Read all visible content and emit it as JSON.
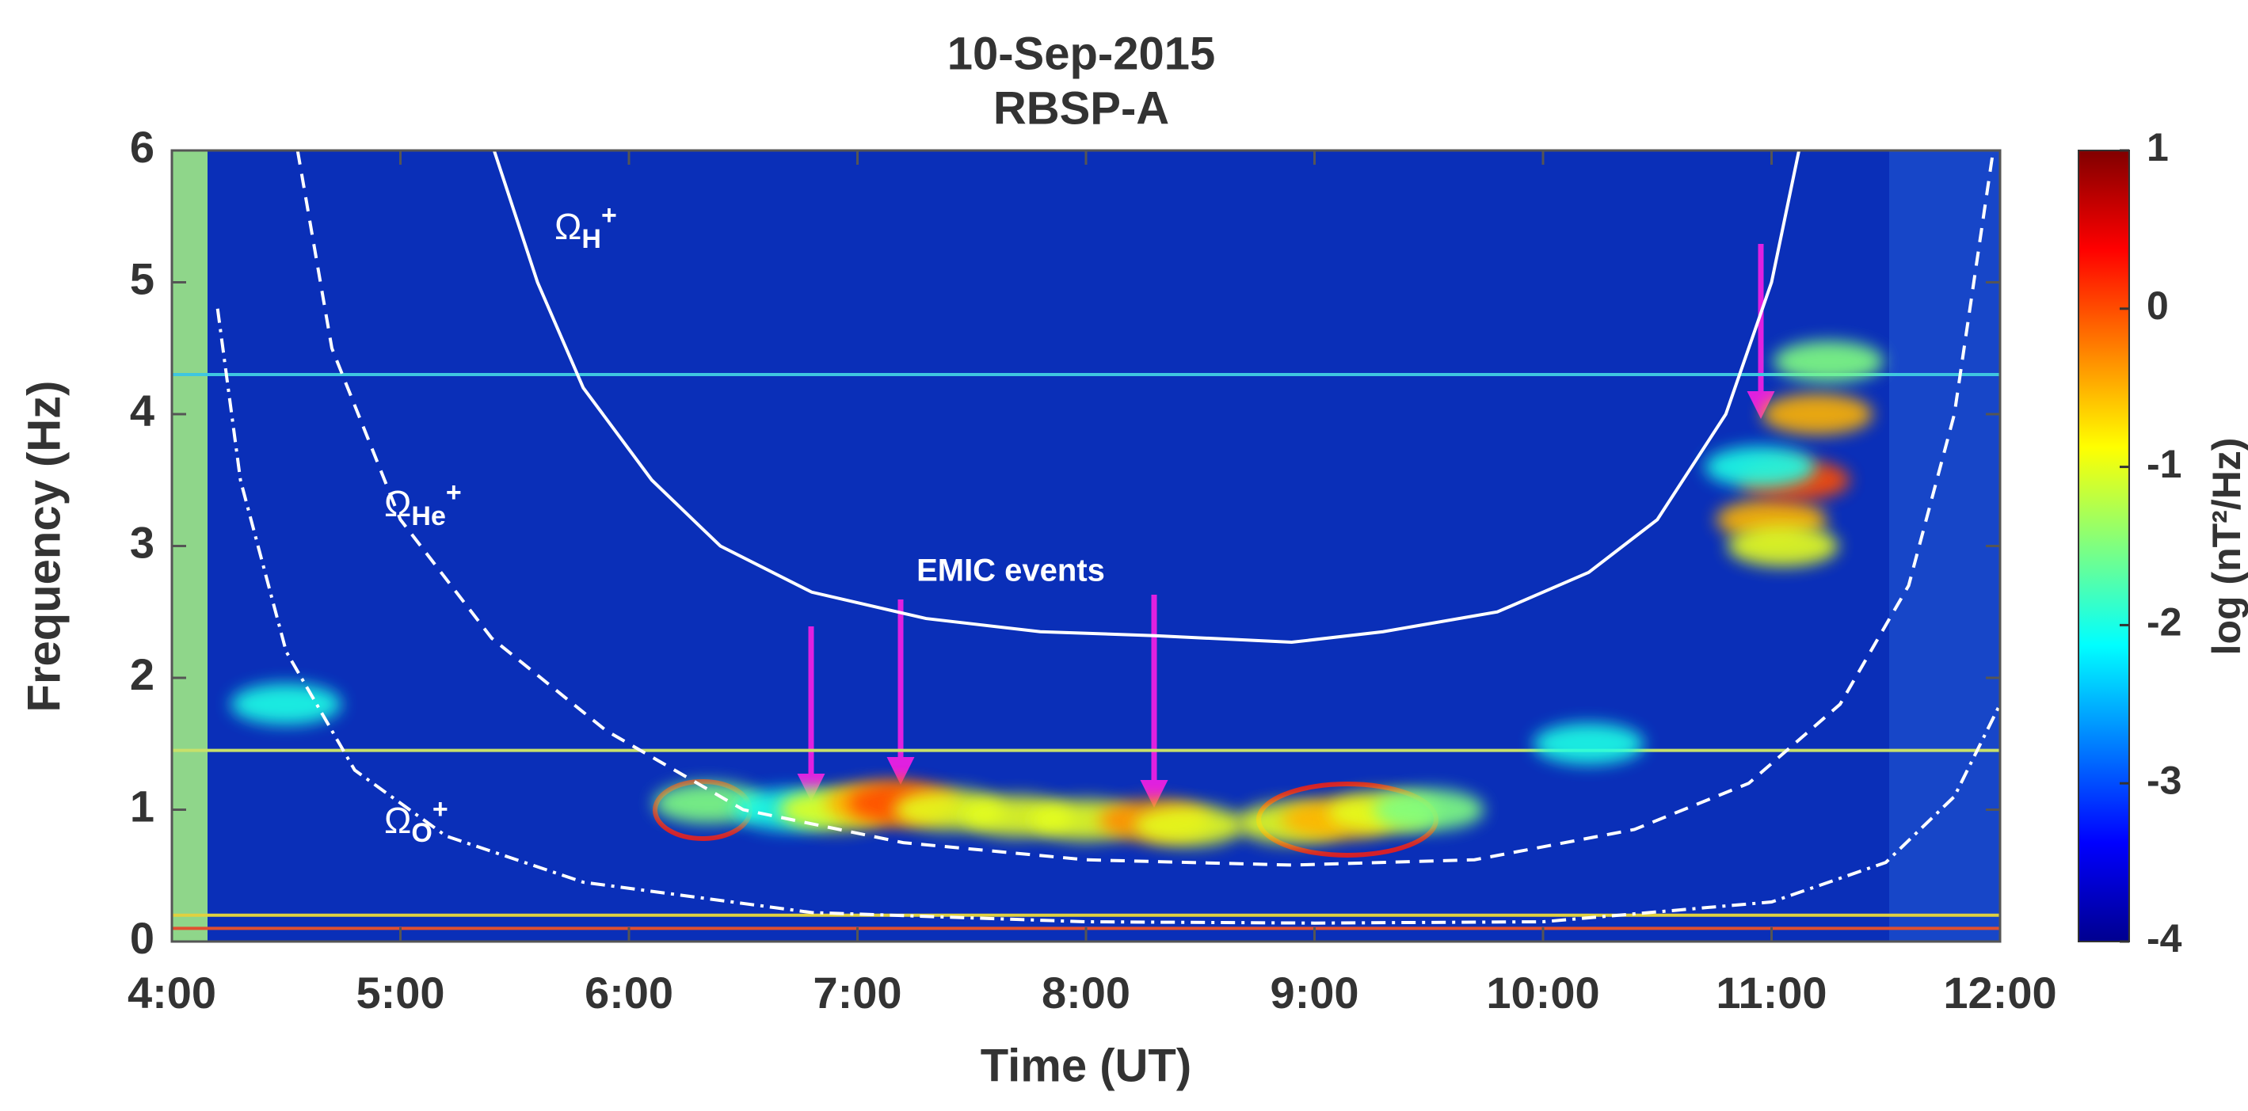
{
  "chart_data": {
    "type": "spectrogram",
    "title": [
      "10-Sep-2015",
      "RBSP-A"
    ],
    "xlabel": "Time (UT)",
    "ylabel": "Frequency (Hz)",
    "colorbar_label": "log (nT²/Hz)",
    "xlim": [
      4,
      12
    ],
    "xticks": [
      {
        "value": 4,
        "label": "4:00"
      },
      {
        "value": 5,
        "label": "5:00"
      },
      {
        "value": 6,
        "label": "6:00"
      },
      {
        "value": 7,
        "label": "7:00"
      },
      {
        "value": 8,
        "label": "8:00"
      },
      {
        "value": 9,
        "label": "9:00"
      },
      {
        "value": 10,
        "label": "10:00"
      },
      {
        "value": 11,
        "label": "11:00"
      },
      {
        "value": 12,
        "label": "12:00"
      }
    ],
    "ylim": [
      0,
      6
    ],
    "yticks": [
      0,
      1,
      2,
      3,
      4,
      5,
      6
    ],
    "clim": [
      -4,
      1
    ],
    "cticks": [
      1,
      0,
      -1,
      -2,
      -3,
      -4
    ],
    "curves": [
      {
        "symbol": "Ω",
        "sub": "H",
        "sup": "+",
        "style": "solid",
        "x": [
          5.41,
          5.6,
          5.8,
          6.1,
          6.4,
          6.8,
          7.3,
          7.8,
          8.3,
          8.9,
          9.3,
          9.8,
          10.2,
          10.5,
          10.8,
          11.0,
          11.12
        ],
        "values": [
          6,
          5,
          4.2,
          3.5,
          3.0,
          2.65,
          2.45,
          2.35,
          2.32,
          2.27,
          2.35,
          2.5,
          2.8,
          3.2,
          4.0,
          5.0,
          6
        ]
      },
      {
        "symbol": "Ω",
        "sub": "He",
        "sup": "+",
        "style": "dashed",
        "x": [
          4.55,
          4.7,
          5.0,
          5.4,
          5.9,
          6.5,
          7.2,
          8.0,
          8.9,
          9.7,
          10.4,
          10.9,
          11.3,
          11.6,
          11.8,
          11.97
        ],
        "values": [
          6,
          4.5,
          3.2,
          2.3,
          1.6,
          1.0,
          0.75,
          0.62,
          0.58,
          0.62,
          0.85,
          1.2,
          1.8,
          2.7,
          4.0,
          6
        ]
      },
      {
        "symbol": "Ω",
        "sub": "O",
        "sup": "+",
        "style": "dashdot",
        "x": [
          4.2,
          4.3,
          4.5,
          4.8,
          5.2,
          5.8,
          6.8,
          8.0,
          9.0,
          10.0,
          11.0,
          11.5,
          11.8,
          12
        ],
        "values": [
          4.8,
          3.5,
          2.2,
          1.3,
          0.8,
          0.45,
          0.22,
          0.15,
          0.14,
          0.15,
          0.3,
          0.6,
          1.1,
          1.8
        ]
      }
    ],
    "lines": [
      {
        "y": 4.3,
        "color": "#3fc6e0"
      },
      {
        "y": 1.45,
        "color": "#c8e06a"
      },
      {
        "y": 0.2,
        "color": "#e0d040"
      },
      {
        "y": 0.1,
        "color": "#e05030"
      }
    ],
    "emission": {
      "x": [
        6.35,
        6.7,
        6.9,
        7.1,
        7.2,
        7.4,
        7.7,
        8.0,
        8.3,
        8.45,
        8.9,
        9.1,
        9.3,
        9.5,
        11.0,
        11.1,
        11.05,
        11.2,
        11.25,
        10.95,
        10.2,
        4.5
      ],
      "values": [
        1.05,
        1.0,
        1.0,
        1.05,
        1.05,
        1.0,
        0.95,
        0.92,
        0.92,
        0.88,
        0.9,
        0.93,
        0.98,
        1.0,
        3.2,
        3.5,
        3.0,
        4.0,
        4.4,
        3.6,
        1.5,
        1.8
      ],
      "levels": [
        -1.5,
        -2,
        -1,
        -0.5,
        0,
        -1,
        -1,
        -1,
        -0.3,
        -1,
        -1,
        -0.5,
        -1,
        -1.5,
        -0.5,
        0,
        -1,
        -0.5,
        -1.5,
        -2,
        -2,
        -2
      ]
    },
    "annotation": "EMIC events"
  }
}
